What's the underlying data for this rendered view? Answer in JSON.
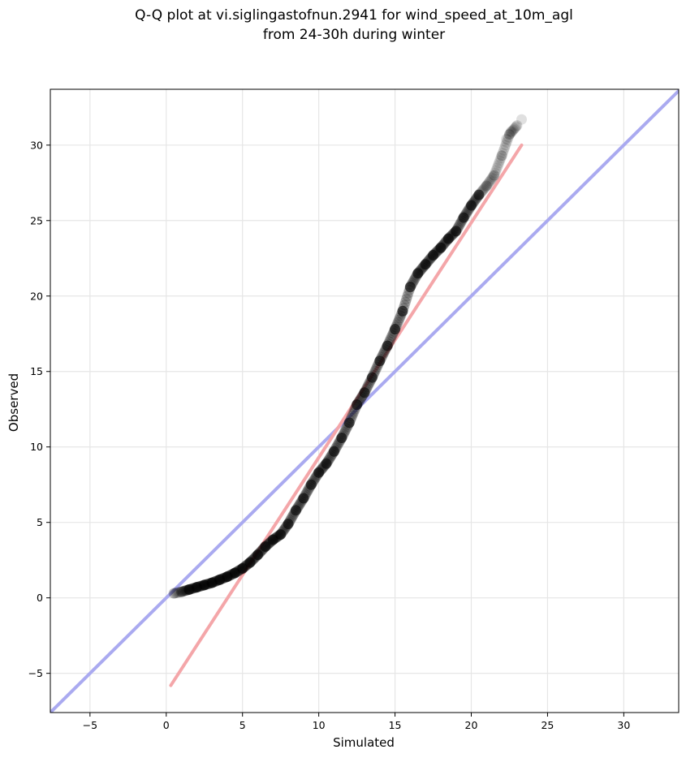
{
  "chart_data": {
    "type": "scatter",
    "title": [
      "Q-Q plot at vi.siglingastofnun.2941 for wind_speed_at_10m_agl",
      "from 24-30h during winter"
    ],
    "xlabel": "Simulated",
    "ylabel": "Observed",
    "xlim": [
      -7.6,
      33.6
    ],
    "ylim": [
      -7.6,
      33.7
    ],
    "xticks": [
      -5,
      0,
      5,
      10,
      15,
      20,
      25,
      30
    ],
    "yticks": [
      -5,
      0,
      5,
      10,
      15,
      20,
      25,
      30
    ],
    "xtick_labels": [
      "−5",
      "0",
      "5",
      "10",
      "15",
      "20",
      "25",
      "30"
    ],
    "ytick_labels": [
      "−5",
      "0",
      "5",
      "10",
      "15",
      "20",
      "25",
      "30"
    ],
    "grid": true,
    "quantile_points": {
      "color": "#000000",
      "points": [
        [
          0.5,
          0.3
        ],
        [
          1.0,
          0.4
        ],
        [
          1.5,
          0.55
        ],
        [
          2.0,
          0.7
        ],
        [
          2.5,
          0.85
        ],
        [
          3.0,
          1.0
        ],
        [
          3.5,
          1.2
        ],
        [
          4.0,
          1.4
        ],
        [
          4.5,
          1.65
        ],
        [
          5.0,
          1.95
        ],
        [
          5.5,
          2.35
        ],
        [
          6.0,
          2.85
        ],
        [
          6.5,
          3.4
        ],
        [
          7.0,
          3.85
        ],
        [
          7.5,
          4.2
        ],
        [
          8.0,
          4.9
        ],
        [
          8.5,
          5.8
        ],
        [
          9.0,
          6.6
        ],
        [
          9.5,
          7.5
        ],
        [
          10.0,
          8.3
        ],
        [
          10.5,
          8.9
        ],
        [
          11.0,
          9.7
        ],
        [
          11.5,
          10.6
        ],
        [
          12.0,
          11.6
        ],
        [
          12.5,
          12.8
        ],
        [
          13.0,
          13.6
        ],
        [
          13.5,
          14.6
        ],
        [
          14.0,
          15.7
        ],
        [
          14.5,
          16.7
        ],
        [
          15.0,
          17.8
        ],
        [
          15.5,
          19.0
        ],
        [
          16.0,
          20.6
        ],
        [
          16.5,
          21.5
        ],
        [
          17.0,
          22.1
        ],
        [
          17.5,
          22.7
        ],
        [
          18.0,
          23.2
        ],
        [
          18.5,
          23.8
        ],
        [
          19.0,
          24.3
        ],
        [
          19.5,
          25.2
        ],
        [
          20.0,
          26.0
        ],
        [
          20.5,
          26.7
        ],
        [
          21.0,
          27.3
        ],
        [
          21.5,
          28.0
        ],
        [
          22.0,
          29.3
        ],
        [
          22.5,
          30.7
        ],
        [
          23.0,
          31.3
        ]
      ],
      "tail_points": [
        [
          22.3,
          30.4
        ],
        [
          22.6,
          30.9
        ],
        [
          23.3,
          31.7
        ]
      ]
    },
    "fit_line": {
      "color": "#f4a6a9",
      "x": [
        0.3,
        23.3
      ],
      "y": [
        -5.8,
        30.0
      ]
    },
    "identity_line": {
      "color": "#aaaaf0",
      "x": [
        -7.6,
        33.6
      ],
      "y": [
        -7.6,
        33.6
      ]
    }
  }
}
